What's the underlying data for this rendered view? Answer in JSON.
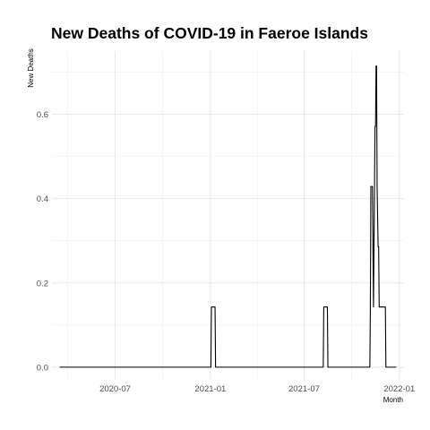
{
  "chart_data": {
    "type": "line",
    "title": "New Deaths of COVID-19 in Faeroe Islands",
    "xlabel": "Month",
    "ylabel": "New Deaths",
    "xlim": [
      "2020-03-01",
      "2022-01-10"
    ],
    "ylim": [
      -0.03,
      0.75
    ],
    "x_ticks": [
      {
        "date": "2020-07-01",
        "label": "2020-07"
      },
      {
        "date": "2021-01-01",
        "label": "2021-01"
      },
      {
        "date": "2021-07-01",
        "label": "2021-07"
      },
      {
        "date": "2022-01-01",
        "label": "2022-01"
      }
    ],
    "y_ticks": [
      {
        "value": 0.0,
        "label": "0.0"
      },
      {
        "value": 0.2,
        "label": "0.2"
      },
      {
        "value": 0.4,
        "label": "0.4"
      },
      {
        "value": 0.6,
        "label": "0.6"
      }
    ],
    "grid": true,
    "line_color": "#000000",
    "series": [
      {
        "x": [
          "2020-03-16",
          "2021-01-02",
          "2021-01-03",
          "2021-01-10",
          "2021-01-11",
          "2021-08-07",
          "2021-08-08",
          "2021-08-15",
          "2021-08-16",
          "2021-11-05",
          "2021-11-06",
          "2021-11-07",
          "2021-11-10",
          "2021-11-11",
          "2021-11-12",
          "2021-11-14",
          "2021-11-15",
          "2021-11-16",
          "2021-11-17",
          "2021-11-18",
          "2021-11-19",
          "2021-11-21",
          "2021-11-22",
          "2021-11-23",
          "2021-11-25",
          "2021-11-27",
          "2021-12-05",
          "2021-12-06",
          "2021-12-26"
        ],
        "y": [
          0,
          0,
          0.1429,
          0.1429,
          0,
          0,
          0.1429,
          0.1429,
          0,
          0,
          0.1429,
          0.4286,
          0.4286,
          0.2857,
          0.1429,
          0.4286,
          0.5714,
          0.5714,
          0.7143,
          0.7143,
          0.4286,
          0.2857,
          0.2857,
          0.1429,
          0.1429,
          0.1429,
          0.1429,
          0,
          0
        ]
      }
    ]
  }
}
